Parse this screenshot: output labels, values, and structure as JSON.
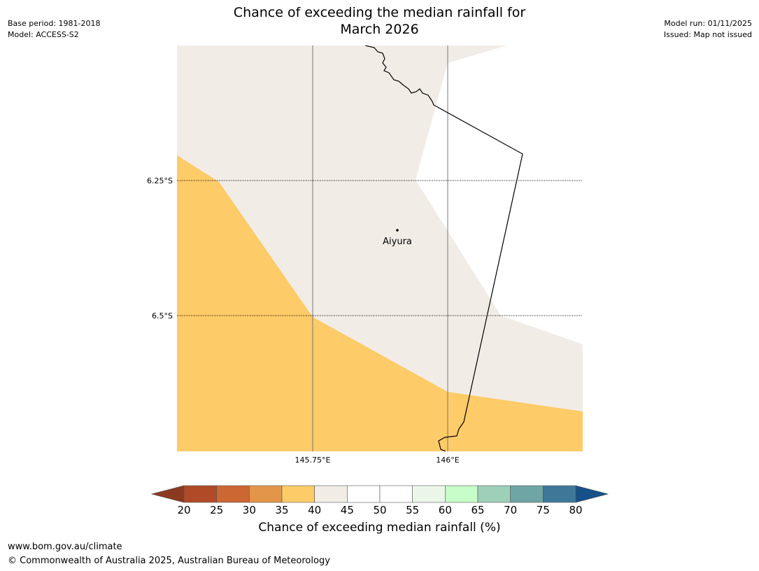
{
  "header": {
    "title_line1": "Chance of exceeding the median rainfall for",
    "title_line2": "March 2026",
    "base_period": "Base period: 1981-2018",
    "model": "Model: ACCESS-S2",
    "model_run": "Model run: 01/11/2025",
    "issued": "Issued: Map not issued"
  },
  "map": {
    "lat_labels": [
      "6.25°S",
      "6.5°S"
    ],
    "lon_labels": [
      "145.75°E",
      "146°E"
    ],
    "place_name": "Aiyura",
    "zones": [
      {
        "name": "35-40",
        "color": "#fdcb67"
      },
      {
        "name": "40-45",
        "color": "#f1ece6"
      },
      {
        "name": "45-55",
        "color": "#ffffff"
      }
    ]
  },
  "colorbar": {
    "ticks": [
      "20",
      "25",
      "30",
      "35",
      "40",
      "45",
      "50",
      "55",
      "60",
      "65",
      "70",
      "75",
      "80"
    ],
    "low_extend_color": "#8b3a20",
    "high_extend_color": "#17518a",
    "colors": [
      "#b04a27",
      "#cc6633",
      "#e39649",
      "#fdcb67",
      "#f1ece6",
      "#ffffff",
      "#ffffff",
      "#eaf7e8",
      "#c7fdc8",
      "#9ecfb9",
      "#6fa5a4",
      "#3e7899"
    ],
    "caption": "Chance of exceeding median rainfall (%)"
  },
  "footer": {
    "url": "www.bom.gov.au/climate",
    "copyright": "© Commonwealth of Australia 2025, Australian Bureau of Meteorology"
  }
}
